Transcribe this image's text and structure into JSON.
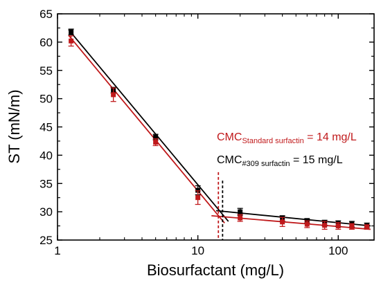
{
  "chart_data": {
    "type": "scatter",
    "xlabel": "Biosurfactant (mg/L)",
    "ylabel": "ST (mN/m)",
    "x_scale": "log",
    "xlim": [
      1,
      180
    ],
    "ylim": [
      25,
      65
    ],
    "x_ticks": [
      1,
      10,
      100
    ],
    "x_tick_labels": [
      "1",
      "10",
      "100"
    ],
    "y_ticks": [
      25,
      30,
      35,
      40,
      45,
      50,
      55,
      60,
      65
    ],
    "y_tick_labels": [
      "25",
      "30",
      "35",
      "40",
      "45",
      "50",
      "55",
      "60",
      "65"
    ],
    "grid": false,
    "series": [
      {
        "color": "#000000",
        "x": [
          1.25,
          2.5,
          5,
          10,
          20,
          40,
          60,
          80,
          100,
          125,
          160
        ],
        "y": [
          61.8,
          51.5,
          43.2,
          33.8,
          30.0,
          28.8,
          28.4,
          28.0,
          27.9,
          27.8,
          27.6
        ],
        "err": [
          0.5,
          0.5,
          0.5,
          0.8,
          0.6,
          0.5,
          0.4,
          0.5,
          0.5,
          0.5,
          0.4
        ],
        "fit_lines": [
          {
            "x": [
              1.2,
              16.5
            ],
            "y": [
              62.2,
              28.3
            ]
          },
          {
            "x": [
              13.5,
              170
            ],
            "y": [
              30.2,
              27.5
            ]
          }
        ]
      },
      {
        "color": "#c0191b",
        "x": [
          1.25,
          2.5,
          5,
          10,
          20,
          40,
          60,
          80,
          100,
          125,
          160
        ],
        "y": [
          60.2,
          50.7,
          42.3,
          32.5,
          28.9,
          28.2,
          27.8,
          27.6,
          27.5,
          27.4,
          27.3
        ],
        "err": [
          0.9,
          1.2,
          0.6,
          1.2,
          0.6,
          0.8,
          0.6,
          0.7,
          0.6,
          0.5,
          0.4
        ],
        "fit_lines": [
          {
            "x": [
              1.2,
              15.5
            ],
            "y": [
              61.2,
              28.0
            ]
          },
          {
            "x": [
              12.5,
              170
            ],
            "y": [
              29.3,
              26.9
            ]
          }
        ]
      }
    ],
    "cmc_markers": [
      {
        "x": 14,
        "color": "#c0191b",
        "y_top": 37.0
      },
      {
        "x": 15,
        "color": "#000000",
        "y_top": 35.5
      }
    ],
    "annotations": [
      {
        "main": "CMC",
        "sub": "Standard surfactin",
        "tail": " = 14 mg/L",
        "color": "#c0191b"
      },
      {
        "main": "CMC",
        "sub": "#309 surfactin",
        "tail": " = 15 mg/L",
        "color": "#000000"
      }
    ]
  }
}
